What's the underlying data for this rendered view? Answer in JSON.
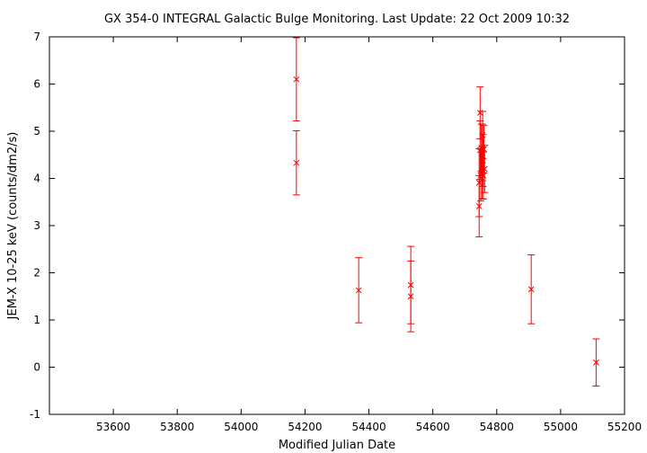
{
  "chart_data": {
    "type": "scatter",
    "title": "GX 354-0   INTEGRAL Galactic Bulge Monitoring.  Last Update: 22 Oct 2009 10:32",
    "xlabel": "Modified Julian Date",
    "ylabel": "JEM-X 10-25 keV (counts/dm2/s)",
    "xlim": [
      53400,
      55200
    ],
    "ylim": [
      -1,
      7
    ],
    "xticks": [
      53600,
      53800,
      54000,
      54200,
      54400,
      54600,
      54800,
      55000,
      55200
    ],
    "yticks": [
      -1,
      0,
      1,
      2,
      3,
      4,
      5,
      6,
      7
    ],
    "grid": false,
    "marker": "x",
    "color": "#ff0000",
    "series": [
      {
        "points": [
          {
            "x": 54173,
            "y": 6.1,
            "yerr": 0.88
          },
          {
            "x": 54173,
            "y": 4.33,
            "yerr": 0.68
          },
          {
            "x": 54368,
            "y": 1.63,
            "yerr": 0.69
          },
          {
            "x": 54531,
            "y": 1.74,
            "yerr": 0.82
          },
          {
            "x": 54531,
            "y": 1.5,
            "yerr": 0.75
          },
          {
            "x": 54745,
            "y": 3.41,
            "yerr": 0.65
          },
          {
            "x": 54745,
            "y": 3.91,
            "yerr": 0.72
          },
          {
            "x": 54748,
            "y": 5.39,
            "yerr": 0.55
          },
          {
            "x": 54748,
            "y": 4.6,
            "yerr": 0.62
          },
          {
            "x": 54750,
            "y": 4.07,
            "yerr": 0.55
          },
          {
            "x": 54752,
            "y": 4.65,
            "yerr": 0.5
          },
          {
            "x": 54754,
            "y": 4.12,
            "yerr": 0.55
          },
          {
            "x": 54755,
            "y": 4.55,
            "yerr": 0.6
          },
          {
            "x": 54756,
            "y": 4.92,
            "yerr": 0.5
          },
          {
            "x": 54757,
            "y": 4.38,
            "yerr": 0.55
          },
          {
            "x": 54758,
            "y": 4.06,
            "yerr": 0.5
          },
          {
            "x": 54760,
            "y": 4.62,
            "yerr": 0.5
          },
          {
            "x": 54762,
            "y": 4.2,
            "yerr": 0.5
          },
          {
            "x": 54908,
            "y": 1.65,
            "yerr": 0.73
          },
          {
            "x": 55111,
            "y": 0.1,
            "yerr": 0.5
          }
        ]
      }
    ]
  }
}
